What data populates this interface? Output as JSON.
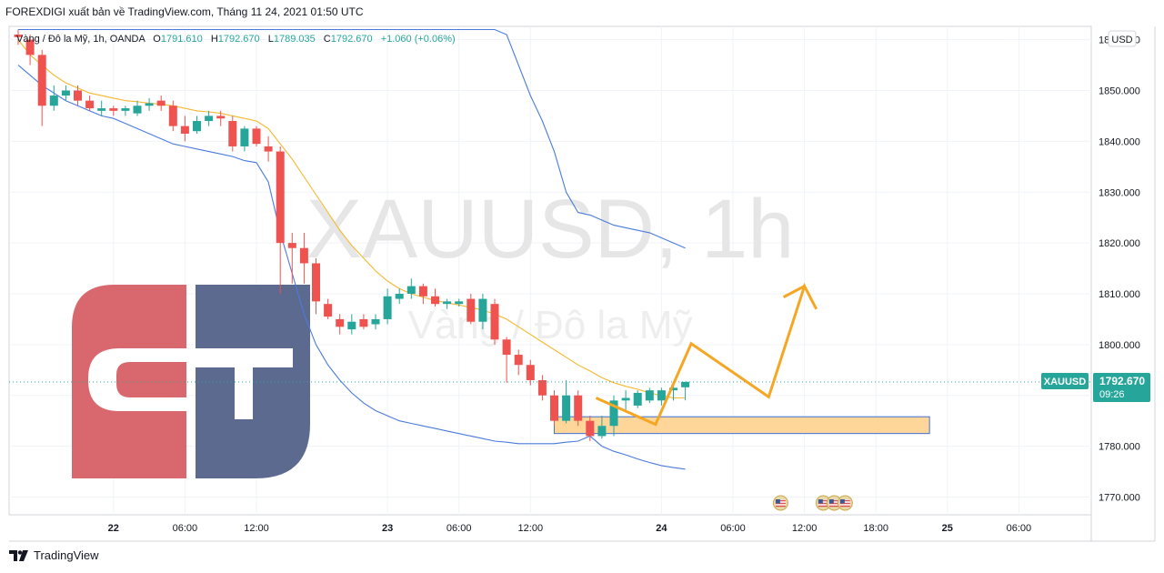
{
  "header": {
    "publisher": "FOREXDIGI xuất bản về TradingView.com, Tháng 11 24, 2021 01:50 UTC"
  },
  "symbol_line": {
    "name": "Vàng / Đô la Mỹ, 1h, OANDA",
    "o_label": "O",
    "o_value": "1791.610",
    "h_label": "H",
    "h_value": "1792.670",
    "l_label": "L",
    "l_value": "1789.035",
    "c_label": "C",
    "c_value": "1792.670",
    "change": "+1.060 (+0.06%)"
  },
  "currency_badge": "USD",
  "watermark": {
    "ticker": "XAUUSD, 1h",
    "name": "Vàng / Đô la Mỹ"
  },
  "logo": {
    "text": "GT"
  },
  "price_tag": {
    "symbol": "XAUUSD",
    "price": "1792.670",
    "countdown": "09:26"
  },
  "colors": {
    "up": "#26a69a",
    "down": "#ef5350",
    "band": "#4a7bdc",
    "basis": "#f5b82e",
    "arrow": "#f5a623",
    "zone_fill": "#ffd699",
    "zone_border": "#3b6fd8",
    "tag_bg": "#26a69a",
    "logo_red": "#d9686e",
    "logo_blue": "#5d6a8f"
  },
  "footer": {
    "brand": "TradingView"
  },
  "chart_data": {
    "type": "candlestick",
    "ylim": [
      1765,
      1862
    ],
    "y_ticks": [
      "1770.000",
      "1780.000",
      "1790.000",
      "1800.000",
      "1810.000",
      "1820.000",
      "1830.000",
      "1840.000",
      "1850.000",
      "1860.000"
    ],
    "x_ticks": [
      {
        "label": "22",
        "bold": true,
        "bar": 8
      },
      {
        "label": "06:00",
        "bold": false,
        "bar": 14
      },
      {
        "label": "12:00",
        "bold": false,
        "bar": 20
      },
      {
        "label": "23",
        "bold": true,
        "bar": 31
      },
      {
        "label": "06:00",
        "bold": false,
        "bar": 37
      },
      {
        "label": "12:00",
        "bold": false,
        "bar": 43
      },
      {
        "label": "24",
        "bold": true,
        "bar": 54
      },
      {
        "label": "06:00",
        "bold": false,
        "bar": 60
      },
      {
        "label": "12:00",
        "bold": false,
        "bar": 66
      },
      {
        "label": "18:00",
        "bold": false,
        "bar": 72
      },
      {
        "label": "25",
        "bold": true,
        "bar": 78
      },
      {
        "label": "06:00",
        "bold": false,
        "bar": 84
      }
    ],
    "candles": [
      [
        1861.0,
        1862.0,
        1859.0,
        1860.5
      ],
      [
        1860.0,
        1861.0,
        1855.0,
        1857.0
      ],
      [
        1857.0,
        1858.0,
        1843.0,
        1847.0
      ],
      [
        1847.0,
        1851.0,
        1846.0,
        1849.0
      ],
      [
        1849.0,
        1851.0,
        1848.0,
        1850.0
      ],
      [
        1850.0,
        1851.0,
        1847.0,
        1848.0
      ],
      [
        1848.0,
        1849.0,
        1846.0,
        1846.5
      ],
      [
        1846.0,
        1848.0,
        1845.0,
        1846.5
      ],
      [
        1846.5,
        1847.0,
        1845.0,
        1846.0
      ],
      [
        1846.0,
        1847.0,
        1845.0,
        1846.5
      ],
      [
        1845.5,
        1848.0,
        1845.0,
        1847.0
      ],
      [
        1847.0,
        1848.5,
        1846.0,
        1847.5
      ],
      [
        1848.0,
        1849.0,
        1846.0,
        1847.0
      ],
      [
        1847.0,
        1848.0,
        1842.0,
        1843.0
      ],
      [
        1843.0,
        1845.0,
        1840.0,
        1841.5
      ],
      [
        1842.0,
        1845.0,
        1841.5,
        1844.0
      ],
      [
        1844.0,
        1846.0,
        1843.0,
        1845.0
      ],
      [
        1845.0,
        1846.0,
        1843.0,
        1844.5
      ],
      [
        1844.0,
        1845.0,
        1838.0,
        1839.0
      ],
      [
        1839.0,
        1843.0,
        1838.0,
        1842.5
      ],
      [
        1842.5,
        1843.0,
        1839.0,
        1839.5
      ],
      [
        1839.0,
        1841.0,
        1836.0,
        1838.0
      ],
      [
        1838.0,
        1839.0,
        1810.0,
        1820.0
      ],
      [
        1820.0,
        1822.0,
        1812.0,
        1819.0
      ],
      [
        1819.0,
        1822.0,
        1812.0,
        1816.0
      ],
      [
        1816.0,
        1817.0,
        1806.0,
        1808.5
      ],
      [
        1808.0,
        1809.0,
        1805.0,
        1805.5
      ],
      [
        1805.0,
        1806.0,
        1802.0,
        1803.5
      ],
      [
        1803.0,
        1806.0,
        1802.0,
        1804.5
      ],
      [
        1805.0,
        1806.0,
        1803.0,
        1803.5
      ],
      [
        1804.0,
        1806.0,
        1803.0,
        1805.0
      ],
      [
        1805.0,
        1811.0,
        1804.0,
        1809.5
      ],
      [
        1809.0,
        1811.0,
        1808.0,
        1810.0
      ],
      [
        1810.0,
        1813.0,
        1809.0,
        1811.5
      ],
      [
        1811.5,
        1812.0,
        1808.0,
        1809.5
      ],
      [
        1809.5,
        1811.0,
        1807.5,
        1808.0
      ],
      [
        1808.0,
        1809.0,
        1807.0,
        1808.5
      ],
      [
        1808.0,
        1809.0,
        1807.5,
        1808.5
      ],
      [
        1809.0,
        1810.0,
        1804.0,
        1804.5
      ],
      [
        1804.5,
        1810.0,
        1803.0,
        1809.0
      ],
      [
        1808.0,
        1809.0,
        1800.0,
        1801.0
      ],
      [
        1801.0,
        1801.5,
        1792.5,
        1798.0
      ],
      [
        1798.0,
        1799.0,
        1794.0,
        1796.0
      ],
      [
        1796.0,
        1797.0,
        1792.0,
        1793.0
      ],
      [
        1793.0,
        1794.0,
        1789.0,
        1790.0
      ],
      [
        1790.0,
        1791.0,
        1784.0,
        1785.0
      ],
      [
        1785.0,
        1793.0,
        1784.5,
        1790.0
      ],
      [
        1790.0,
        1791.0,
        1784.0,
        1785.0
      ],
      [
        1785.0,
        1786.0,
        1781.0,
        1782.0
      ],
      [
        1782.0,
        1786.0,
        1781.5,
        1784.0
      ],
      [
        1784.0,
        1790.0,
        1782.0,
        1789.0
      ],
      [
        1789.0,
        1791.0,
        1787.0,
        1789.5
      ],
      [
        1788.0,
        1791.0,
        1787.5,
        1790.5
      ],
      [
        1789.0,
        1791.5,
        1788.5,
        1791.0
      ],
      [
        1789.0,
        1791.5,
        1788.0,
        1791.0
      ],
      [
        1791.0,
        1792.5,
        1789.0,
        1791.5
      ],
      [
        1791.6,
        1792.67,
        1789.035,
        1792.67
      ]
    ],
    "bollinger": {
      "basis": [
        1860,
        1857,
        1855,
        1853,
        1851.5,
        1850.5,
        1849.5,
        1849,
        1848.5,
        1848,
        1847.8,
        1847.5,
        1847.3,
        1847,
        1846.5,
        1846,
        1845.8,
        1845.5,
        1845,
        1844.5,
        1844,
        1842.5,
        1839.5,
        1836.5,
        1833,
        1829.5,
        1826,
        1822.5,
        1819.5,
        1817,
        1814.5,
        1812.5,
        1811,
        1810,
        1809.3,
        1808.7,
        1808.2,
        1807.8,
        1807.3,
        1806.8,
        1806,
        1805,
        1803.5,
        1802,
        1800.5,
        1799,
        1797.5,
        1796,
        1794.8,
        1793.5,
        1792.5,
        1791.8,
        1791.2,
        1790.5,
        1790,
        1789.5,
        1789.5
      ],
      "upper": [
        1862,
        1862,
        1862,
        1862,
        1862,
        1862,
        1862,
        1862,
        1862,
        1862,
        1862,
        1862,
        1862,
        1862,
        1862,
        1862,
        1862,
        1862,
        1862,
        1862,
        1862,
        1862,
        1862,
        1862,
        1862,
        1862,
        1862,
        1862,
        1862,
        1862,
        1862,
        1862,
        1862,
        1862,
        1862,
        1862,
        1862,
        1862,
        1862,
        1862,
        1862,
        1861,
        1855,
        1849,
        1844,
        1838,
        1830,
        1826,
        1825.5,
        1824.5,
        1823.5,
        1823,
        1822.5,
        1822,
        1821,
        1820,
        1819
      ],
      "lower": [
        1855,
        1853,
        1851,
        1849.5,
        1848,
        1847,
        1846,
        1845,
        1844.5,
        1843.5,
        1842.5,
        1841.5,
        1840.5,
        1839.5,
        1839,
        1838.5,
        1838,
        1837.5,
        1837,
        1836.2,
        1835.8,
        1832,
        1822,
        1814,
        1806,
        1800,
        1796,
        1793,
        1790.5,
        1788.5,
        1787,
        1786,
        1785,
        1784.5,
        1784,
        1783.5,
        1783,
        1782.5,
        1782,
        1781.5,
        1781,
        1780.8,
        1780.5,
        1780.5,
        1780.5,
        1780.5,
        1780.8,
        1781,
        1782,
        1780,
        1779,
        1778.3,
        1777.5,
        1776.8,
        1776.2,
        1775.8,
        1775.5
      ]
    },
    "zone": {
      "bar_from": 45,
      "bar_to": 76.5,
      "price_low": 1782.5,
      "price_high": 1785.8
    },
    "projection": [
      [
        48.5,
        1789.5
      ],
      [
        53.5,
        1784.3
      ],
      [
        56.5,
        1800.2
      ],
      [
        63,
        1789.7
      ],
      [
        66,
        1811.5
      ],
      [
        67,
        1807
      ]
    ],
    "event_icons": [
      {
        "bar": 64,
        "count": 1
      },
      {
        "bar": 68.5,
        "count": 3
      }
    ],
    "last_price": 1792.67
  }
}
